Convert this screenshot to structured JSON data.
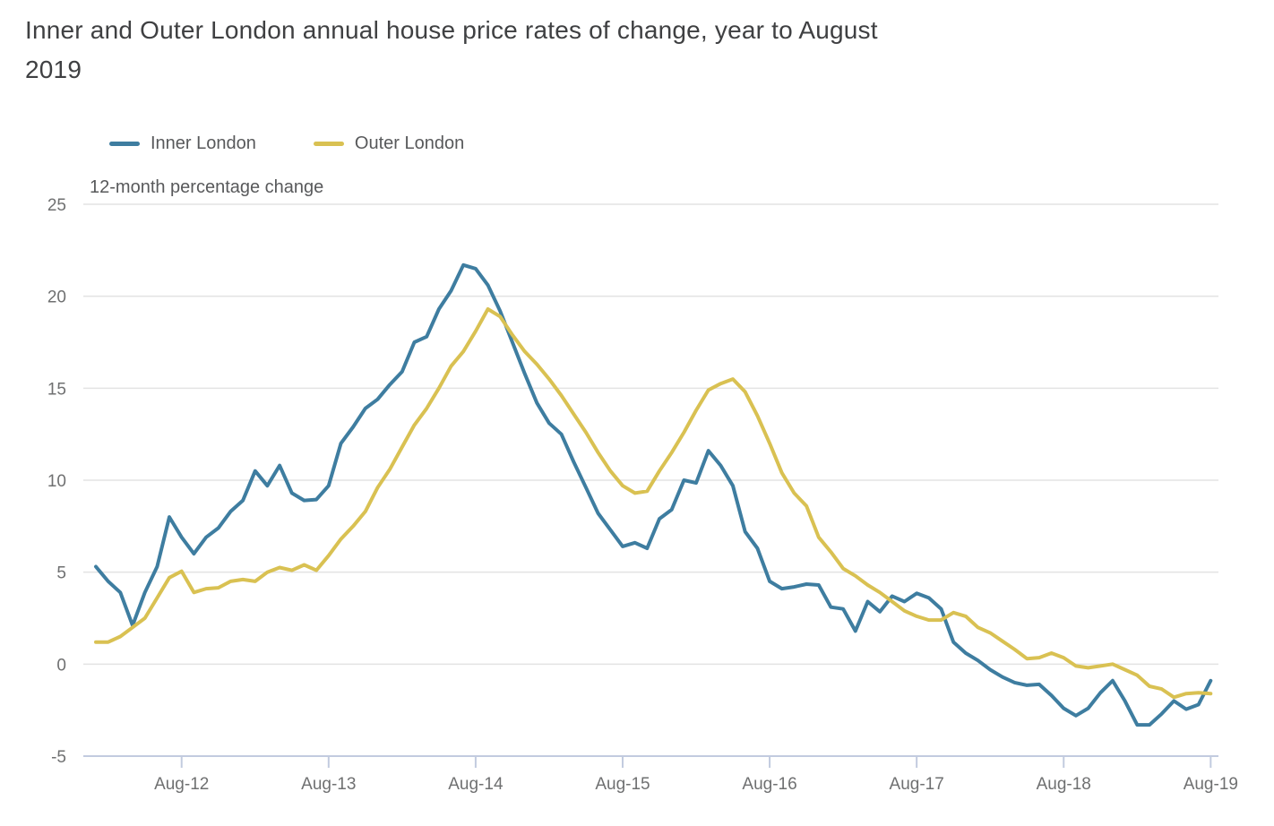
{
  "title": {
    "text": "Inner and Outer London annual house price rates of change, year to August 2019"
  },
  "chart_data": {
    "type": "line",
    "title": "Inner and Outer London annual house price rates of change, year to August 2019",
    "ylabel": "12-month percentage change",
    "x_frequency": "monthly",
    "x_start_month": "Jan-2012",
    "x_end_month": "Aug-2019",
    "xtick_labels": [
      "Aug-12",
      "Aug-13",
      "Aug-14",
      "Aug-15",
      "Aug-16",
      "Aug-17",
      "Aug-18",
      "Aug-19"
    ],
    "xtick_month_index": [
      7,
      19,
      31,
      43,
      55,
      67,
      79,
      91
    ],
    "ylim": [
      -5,
      25
    ],
    "yticks": [
      25,
      20,
      15,
      10,
      5,
      0,
      -5
    ],
    "grid": "horizontal",
    "legend_position": "top-left",
    "series": [
      {
        "name": "Inner London",
        "color": "#3e7da0",
        "values": [
          5.3,
          4.5,
          3.9,
          2.1,
          3.9,
          5.3,
          8.0,
          6.9,
          6.0,
          6.9,
          7.4,
          8.3,
          8.9,
          10.5,
          9.7,
          10.8,
          9.3,
          8.9,
          8.95,
          9.7,
          12.0,
          12.9,
          13.9,
          14.4,
          15.2,
          15.9,
          17.5,
          17.8,
          19.3,
          20.3,
          21.7,
          21.5,
          20.6,
          19.2,
          17.5,
          15.8,
          14.2,
          13.1,
          12.5,
          11.0,
          9.6,
          8.2,
          7.3,
          6.4,
          6.6,
          6.3,
          7.9,
          8.4,
          10.0,
          9.85,
          11.6,
          10.8,
          9.7,
          7.2,
          6.3,
          4.5,
          4.1,
          4.2,
          4.35,
          4.3,
          3.1,
          3.0,
          1.8,
          3.4,
          2.85,
          3.7,
          3.4,
          3.85,
          3.6,
          3.0,
          1.2,
          0.6,
          0.2,
          -0.3,
          -0.7,
          -1.0,
          -1.15,
          -1.1,
          -1.7,
          -2.4,
          -2.8,
          -2.4,
          -1.55,
          -0.9,
          -2.0,
          -3.3,
          -3.3,
          -2.7,
          -2.0,
          -2.45,
          -2.2,
          -0.9
        ]
      },
      {
        "name": "Outer London",
        "color": "#d9c152",
        "values": [
          1.2,
          1.2,
          1.5,
          2.0,
          2.5,
          3.6,
          4.7,
          5.05,
          3.9,
          4.1,
          4.15,
          4.5,
          4.6,
          4.5,
          5.0,
          5.25,
          5.1,
          5.4,
          5.1,
          5.9,
          6.8,
          7.5,
          8.3,
          9.6,
          10.6,
          11.8,
          13.0,
          13.9,
          15.0,
          16.2,
          17.0,
          18.1,
          19.3,
          18.9,
          17.9,
          17.0,
          16.3,
          15.5,
          14.6,
          13.6,
          12.6,
          11.5,
          10.5,
          9.7,
          9.3,
          9.4,
          10.5,
          11.5,
          12.6,
          13.8,
          14.9,
          15.25,
          15.5,
          14.8,
          13.5,
          12.0,
          10.4,
          9.3,
          8.6,
          6.9,
          6.1,
          5.2,
          4.8,
          4.3,
          3.9,
          3.4,
          2.9,
          2.6,
          2.4,
          2.4,
          2.8,
          2.6,
          2.0,
          1.7,
          1.25,
          0.8,
          0.3,
          0.35,
          0.6,
          0.35,
          -0.1,
          -0.2,
          -0.1,
          0.0,
          -0.3,
          -0.6,
          -1.2,
          -1.35,
          -1.8,
          -1.6,
          -1.55,
          -1.6
        ]
      }
    ]
  },
  "colors": {
    "background": "#ffffff",
    "gridline": "#e3e3e3",
    "axis_line": "#c2cbdf",
    "title_text": "#3f4042",
    "axis_text": "#6f7071",
    "legend_text": "#58595b"
  }
}
